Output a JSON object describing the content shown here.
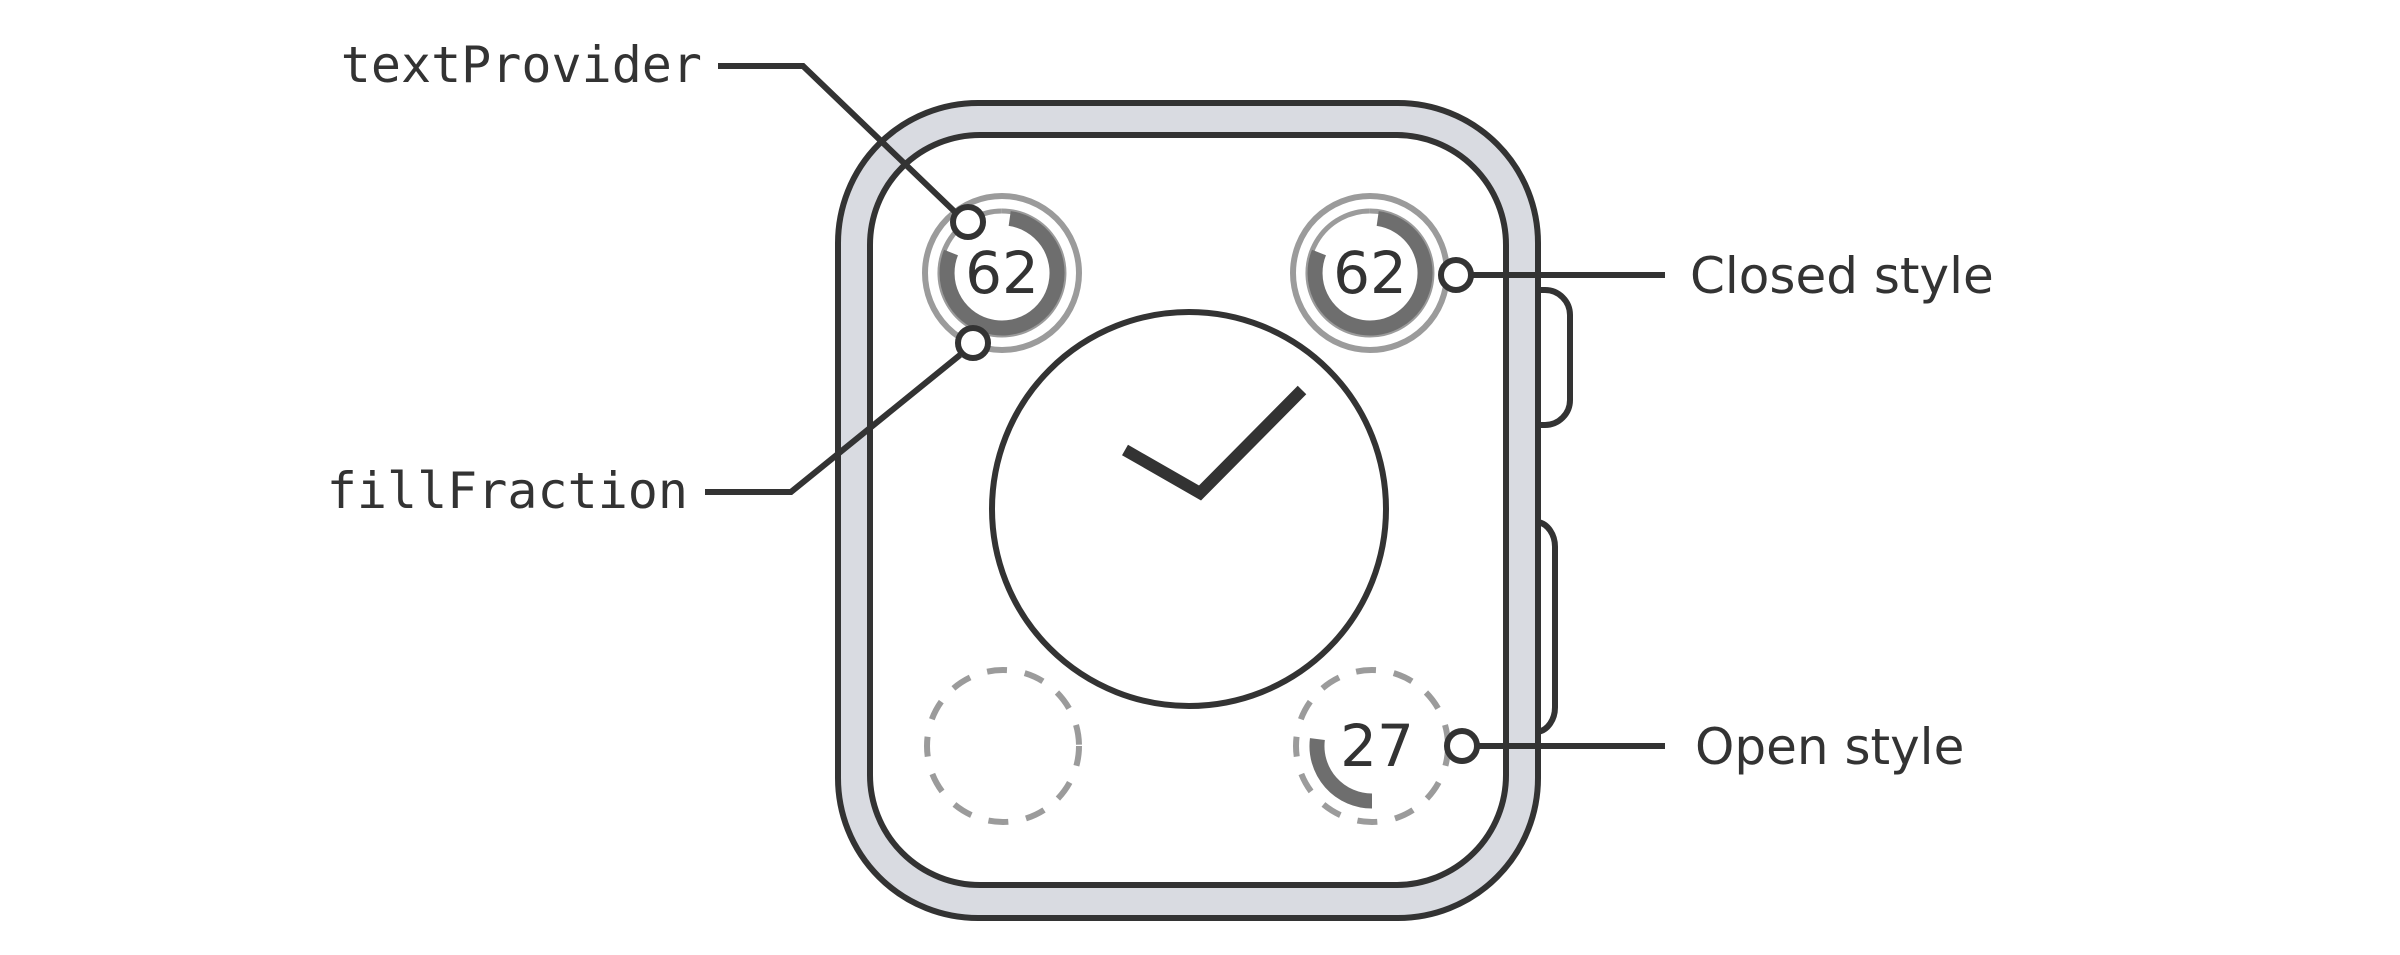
{
  "labels": {
    "text_provider": "textProvider",
    "fill_fraction": "fillFraction",
    "closed_style": "Closed style",
    "open_style": "Open style"
  },
  "complications": {
    "top_left": {
      "value": "62",
      "fill": 0.62
    },
    "top_right": {
      "value": "62",
      "fill": 0.62
    },
    "bottom_right": {
      "value": "27",
      "fill": 0.27
    }
  },
  "colors": {
    "stroke": "#333333",
    "case_fill": "#d9dbe1",
    "ring_light": "#9b9b9b",
    "ring_dark": "#6e6e6e",
    "background": "#ffffff"
  }
}
